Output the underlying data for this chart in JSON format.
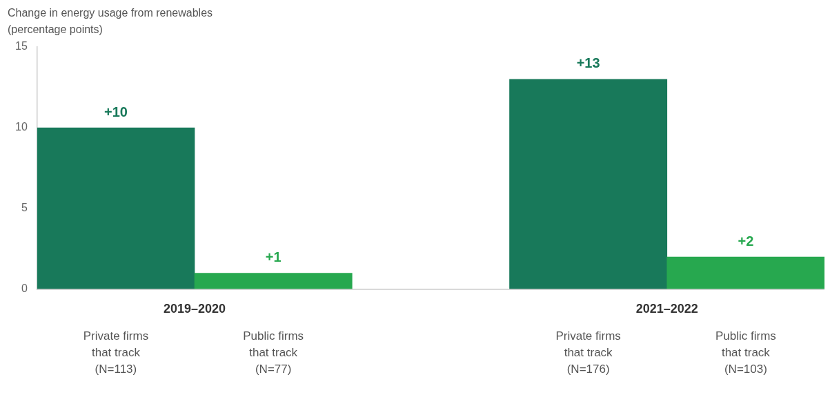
{
  "chart_data": {
    "type": "bar",
    "ylabel": "Change in energy usage from renewables (percentage points)",
    "categories": [
      "Private firms that track (N=113)",
      "Public firms that track (N=77)",
      null,
      "Private firms that track (N=176)",
      "Public firms that track (N=103)"
    ],
    "values": [
      10,
      1,
      null,
      13,
      2
    ],
    "colors": [
      "#18795a",
      "#27a84f",
      "#ffffff",
      "#18795a",
      "#27a84f"
    ],
    "value_labels": [
      "+10",
      "+1",
      null,
      "+13",
      "+2"
    ],
    "annotations": [
      "2019–2020",
      "2021–2022"
    ],
    "ylim": [
      0,
      15
    ],
    "yticks": [
      0,
      5,
      10,
      15
    ],
    "grid": false,
    "legend": false
  }
}
